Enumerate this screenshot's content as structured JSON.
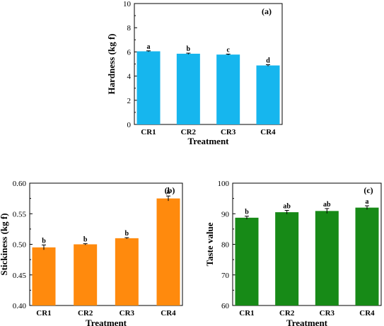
{
  "chart_data": [
    {
      "type": "bar",
      "panel_label": "(a)",
      "categories": [
        "CR1",
        "CR2",
        "CR3",
        "CR4"
      ],
      "values": [
        6.05,
        5.85,
        5.78,
        4.88
      ],
      "errors": [
        0.04,
        0.05,
        0.04,
        0.06
      ],
      "significance": [
        "a",
        "b",
        "c",
        "d"
      ],
      "xlabel": "Treatment",
      "ylabel": "Hardness (kg f)",
      "ylim": [
        0,
        10
      ],
      "yticks": [
        0,
        2,
        4,
        6,
        8,
        10
      ],
      "ytick_labels": [
        "0",
        "2",
        "4",
        "6",
        "8",
        "10"
      ],
      "color": "#16b6ee"
    },
    {
      "type": "bar",
      "panel_label": "(b)",
      "categories": [
        "CR1",
        "CR2",
        "CR3",
        "CR4"
      ],
      "values": [
        0.495,
        0.5,
        0.51,
        0.575
      ],
      "errors": [
        0.004,
        0.001,
        0.001,
        0.004
      ],
      "significance": [
        "b",
        "b",
        "b",
        "a"
      ],
      "xlabel": "Treatment",
      "ylabel": "Stickiness (kg f)",
      "ylim": [
        0.4,
        0.6
      ],
      "yticks": [
        0.4,
        0.45,
        0.5,
        0.55,
        0.6
      ],
      "ytick_labels": [
        "0.40",
        "0.45",
        "0.50",
        "0.55",
        "0.60"
      ],
      "color": "#ff8a0d"
    },
    {
      "type": "bar",
      "panel_label": "(c)",
      "categories": [
        "CR1",
        "CR2",
        "CR3",
        "CR4"
      ],
      "values": [
        88.7,
        90.5,
        90.9,
        92.0
      ],
      "errors": [
        0.5,
        0.6,
        0.8,
        0.6
      ],
      "significance": [
        "b",
        "ab",
        "ab",
        "a"
      ],
      "xlabel": "Treatment",
      "ylabel": "Taste value",
      "ylim": [
        60,
        100
      ],
      "yticks": [
        60,
        70,
        80,
        90,
        100
      ],
      "ytick_labels": [
        "60",
        "70",
        "80",
        "90",
        "100"
      ],
      "color": "#178a17"
    }
  ]
}
